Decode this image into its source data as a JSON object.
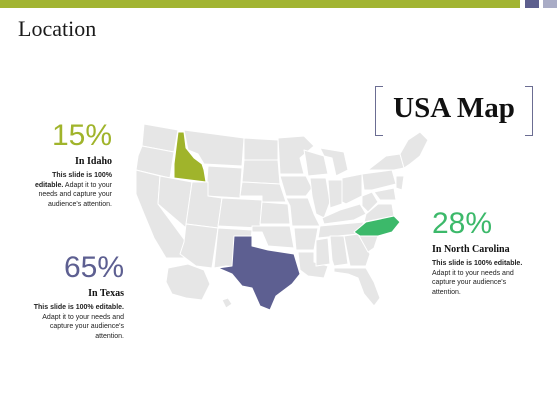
{
  "page": {
    "title": "Location"
  },
  "map_title": "USA Map",
  "colors": {
    "idaho": "#a0b42b",
    "texas": "#5d5f91",
    "north_carolina": "#3cb96a",
    "states": "#e6e6e6",
    "border": "#ffffff"
  },
  "stats": {
    "idaho": {
      "percent": "15%",
      "name": "In Idaho",
      "desc_bold": "This slide is 100% editable.",
      "desc_rest": " Adapt it to your needs and capture your audience's attention."
    },
    "texas": {
      "percent": "65%",
      "name": "In Texas",
      "desc_bold": "This slide is 100% editable.",
      "desc_rest": " Adapt it to your needs and capture your audience's attention."
    },
    "north_carolina": {
      "percent": "28%",
      "name": "In North Carolina",
      "desc_bold": "This slide is 100% editable.",
      "desc_rest": " Adapt it to your needs and capture your audience's attention."
    }
  }
}
